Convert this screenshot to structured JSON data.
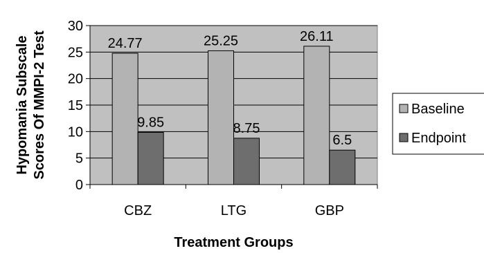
{
  "chart_data": {
    "type": "bar",
    "categories": [
      "CBZ",
      "LTG",
      "GBP"
    ],
    "series": [
      {
        "name": "Baseline",
        "values": [
          24.77,
          25.25,
          26.11
        ],
        "labels": [
          "24.77",
          "25.25",
          "26.11"
        ],
        "color": "#b3b3b3"
      },
      {
        "name": "Endpoint",
        "values": [
          9.85,
          8.75,
          6.5
        ],
        "labels": [
          "9.85",
          "8.75",
          "6.5"
        ],
        "color": "#6e6e6e"
      }
    ],
    "title": "",
    "xlabel": "Treatment Groups",
    "ylabel_lines": [
      "Hypomania Subscale",
      "Scores Of MMPI-2 Test"
    ],
    "ylim": [
      0,
      30
    ],
    "yticks": [
      0,
      5,
      10,
      15,
      20,
      25,
      30
    ],
    "grid": true,
    "legend_position": "right",
    "plot_background": "#c0c0c0"
  }
}
